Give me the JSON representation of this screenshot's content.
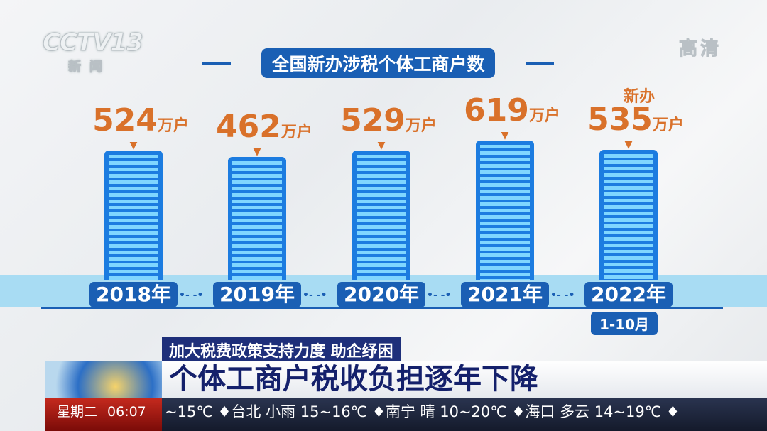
{
  "channel": {
    "logo": "CCTV13",
    "logo_sub": "新闻",
    "hd": "高清"
  },
  "chart_data": {
    "type": "bar",
    "title": "全国新办涉税个体工商户数",
    "categories": [
      "2018年",
      "2019年",
      "2020年",
      "2021年",
      "2022年"
    ],
    "values": [
      524,
      462,
      529,
      619,
      535
    ],
    "value_labels": [
      "524",
      "462",
      "529",
      "619",
      "535"
    ],
    "unit": "万户",
    "annotations": {
      "2022_prefix": "新办",
      "2022_period": "1-10月"
    },
    "xlabel": "",
    "ylabel": ""
  },
  "ticker": {
    "topic": "加大税费政策支持力度 助企纾困",
    "headline": "个体工商户税收负担逐年下降",
    "day": "星期二",
    "time": "06:07",
    "weather": "~15℃ ♦台北 小雨 15~16℃ ♦南宁 晴 10~20℃ ♦海口 多云 14~19℃ ♦"
  }
}
